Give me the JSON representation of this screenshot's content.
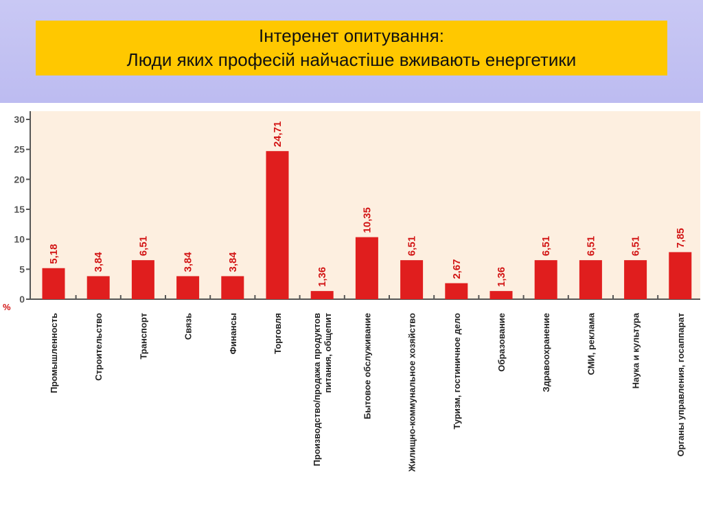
{
  "header": {
    "title_line1": "Інтеренет опитування:",
    "title_line2": "Люди яких професій найчастіше вживають енергетики"
  },
  "colors": {
    "title_box": "#ffc800",
    "plot_background": "#fdefe0",
    "bar": "#e01e1e",
    "data_label": "#d21414"
  },
  "chart_data": {
    "type": "bar",
    "unit_label": "%",
    "ylim": [
      0,
      30
    ],
    "yticks": [
      0,
      5,
      10,
      15,
      20,
      25,
      30
    ],
    "grid": false,
    "categories": [
      [
        "Промышленность"
      ],
      [
        "Строительство"
      ],
      [
        "Транспорт"
      ],
      [
        "Связь"
      ],
      [
        "Финансы"
      ],
      [
        "Торговля"
      ],
      [
        "Производство/продажа продуктов",
        "питания, общепит"
      ],
      [
        "Бытовое обслуживание"
      ],
      [
        "Жилищно-коммунальное хозяйство"
      ],
      [
        "Туризм, гостиничное дело"
      ],
      [
        "Образование"
      ],
      [
        "Здравоохранение"
      ],
      [
        "СМИ, реклама"
      ],
      [
        "Наука и культура"
      ],
      [
        "Органы управления, госаппарат"
      ]
    ],
    "values": [
      5.18,
      3.84,
      6.51,
      3.84,
      3.84,
      24.71,
      1.36,
      10.35,
      6.51,
      2.67,
      1.36,
      6.51,
      6.51,
      6.51,
      7.85
    ],
    "value_labels": [
      "5,18",
      "3,84",
      "6,51",
      "3,84",
      "3,84",
      "24,71",
      "1,36",
      "10,35",
      "6,51",
      "2,67",
      "1,36",
      "6,51",
      "6,51",
      "6,51",
      "7,85"
    ]
  }
}
